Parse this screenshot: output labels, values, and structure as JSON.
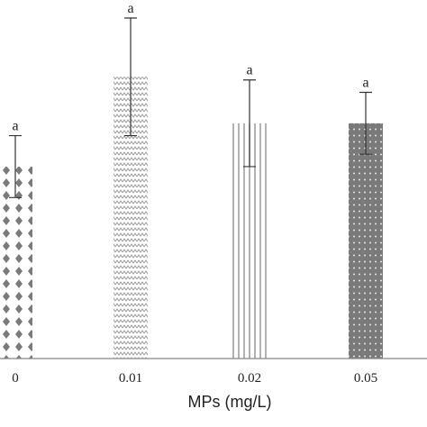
{
  "chart_data": {
    "type": "bar",
    "title": "",
    "xlabel": "MPs (mg/L)",
    "ylabel": "",
    "categories": [
      "0",
      "0.01",
      "0.02",
      "0.05"
    ],
    "values": [
      0.62,
      0.91,
      0.76,
      0.76
    ],
    "errors": [
      0.1,
      0.19,
      0.14,
      0.1
    ],
    "significance": [
      "a",
      "a",
      "a",
      "a"
    ],
    "ylim": [
      0,
      1.1
    ],
    "grid": false,
    "legend": "none",
    "patterns": [
      "diamond-dots",
      "zigzag",
      "vertical-lines",
      "dense-dots"
    ],
    "colors": {
      "bar": "#7a7a7a",
      "axis": "#888888",
      "error": "#333333"
    }
  }
}
